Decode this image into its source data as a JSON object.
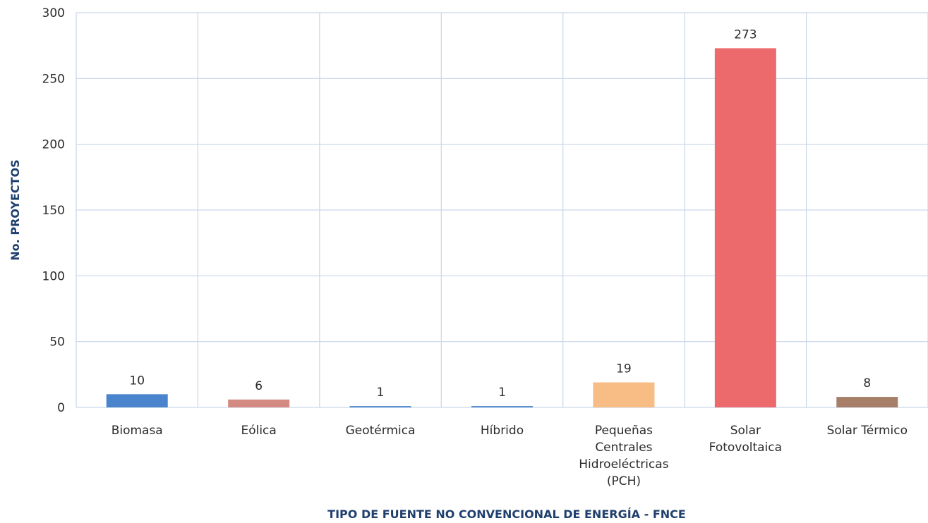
{
  "chart_data": {
    "type": "bar",
    "title": "",
    "xlabel": "TIPO DE FUENTE NO CONVENCIONAL DE ENERGÍA - FNCE",
    "ylabel": "No. PROYECTOS",
    "ylim": [
      0,
      300
    ],
    "yticks": [
      "0",
      "50",
      "100",
      "150",
      "200",
      "250",
      "300"
    ],
    "grid": true,
    "legend": "none",
    "categories": [
      [
        "Biomasa"
      ],
      [
        "Eólica"
      ],
      [
        "Geotérmica"
      ],
      [
        "Híbrido"
      ],
      [
        "Pequeñas",
        "Centrales",
        "Hidroeléctricas",
        "(PCH)"
      ],
      [
        "Solar",
        "Fotovoltaica"
      ],
      [
        "Solar Térmico"
      ]
    ],
    "values": [
      10,
      6,
      1,
      1,
      19,
      273,
      8
    ],
    "data_labels": [
      "10",
      "6",
      "1",
      "1",
      "19",
      "273",
      "8"
    ],
    "colors": [
      "#4a84cc",
      "#d38a80",
      "#4a84cc",
      "#4a84cc",
      "#f7bd85",
      "#ed6a6c",
      "#a77f68"
    ]
  }
}
